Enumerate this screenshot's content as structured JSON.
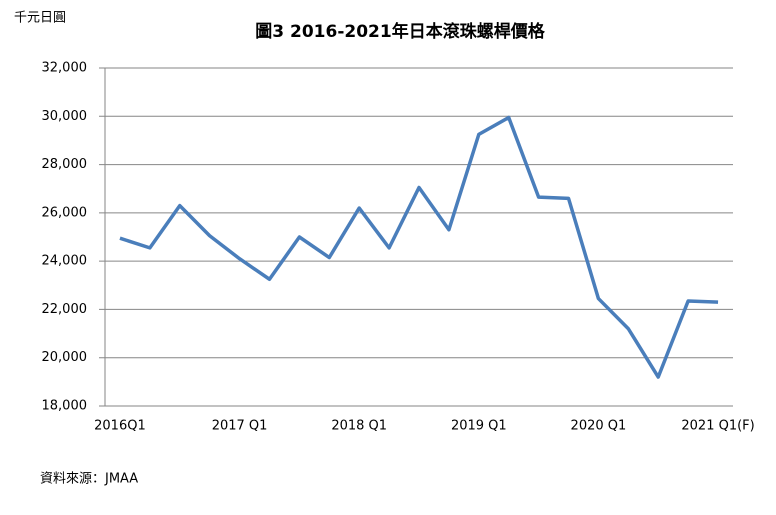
{
  "chart_data": {
    "type": "line",
    "title": "圖3 2016-2021年日本滾珠螺桿價格",
    "y_label": "千元日圓",
    "source": "資料來源：JMAA",
    "categories": [
      "2016Q1",
      null,
      null,
      null,
      "2017 Q1",
      null,
      null,
      null,
      "2018 Q1",
      null,
      null,
      null,
      "2019 Q1",
      null,
      null,
      null,
      "2020 Q1",
      null,
      null,
      null,
      "2021 Q1(F)"
    ],
    "series": [
      {
        "name": "價格",
        "color": "#4a7ebb",
        "values": [
          24950,
          24550,
          26300,
          25050,
          24100,
          23250,
          25000,
          24150,
          26200,
          24550,
          27050,
          25300,
          29250,
          29950,
          26650,
          26600,
          22450,
          21200,
          19200,
          22350,
          22300
        ]
      }
    ],
    "ylim": [
      18000,
      32000
    ],
    "yticks": [
      {
        "value": 18000,
        "label": "18,000"
      },
      {
        "value": 20000,
        "label": "20,000"
      },
      {
        "value": 22000,
        "label": "22,000"
      },
      {
        "value": 24000,
        "label": "24,000"
      },
      {
        "value": 26000,
        "label": "26,000"
      },
      {
        "value": 28000,
        "label": "28,000"
      },
      {
        "value": 30000,
        "label": "30,000"
      },
      {
        "value": 32000,
        "label": "32,000"
      }
    ],
    "grid": true
  }
}
